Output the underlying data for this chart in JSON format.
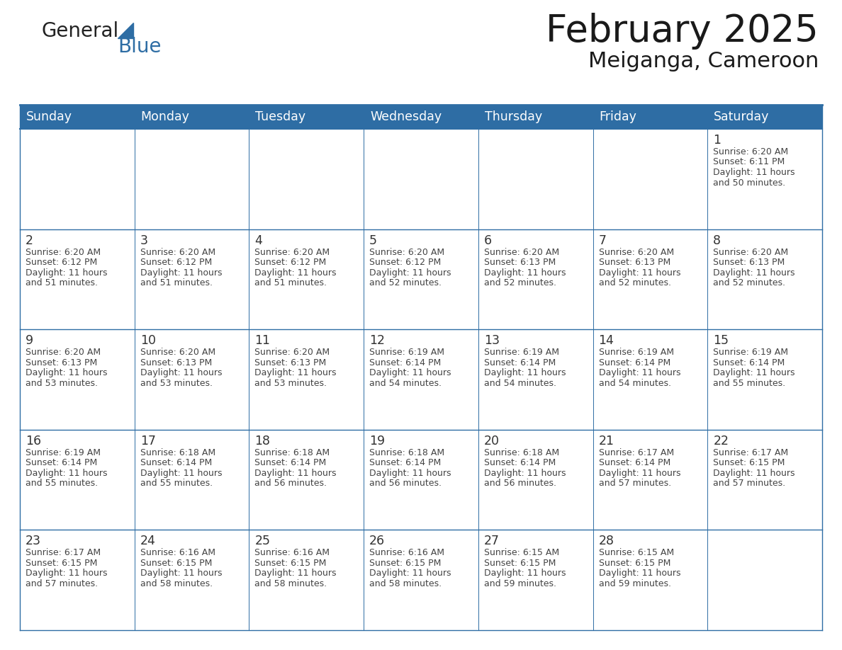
{
  "title": "February 2025",
  "subtitle": "Meiganga, Cameroon",
  "days_of_week": [
    "Sunday",
    "Monday",
    "Tuesday",
    "Wednesday",
    "Thursday",
    "Friday",
    "Saturday"
  ],
  "header_bg": "#2E6DA4",
  "header_text": "#FFFFFF",
  "cell_bg": "#FFFFFF",
  "border_color": "#2E6DA4",
  "text_color": "#333333",
  "title_color": "#1a1a1a",
  "calendar_data": [
    [
      null,
      null,
      null,
      null,
      null,
      null,
      {
        "day": 1,
        "sunrise": "6:20 AM",
        "sunset": "6:11 PM",
        "daylight": "11 hours and 50 minutes."
      }
    ],
    [
      {
        "day": 2,
        "sunrise": "6:20 AM",
        "sunset": "6:12 PM",
        "daylight": "11 hours and 51 minutes."
      },
      {
        "day": 3,
        "sunrise": "6:20 AM",
        "sunset": "6:12 PM",
        "daylight": "11 hours and 51 minutes."
      },
      {
        "day": 4,
        "sunrise": "6:20 AM",
        "sunset": "6:12 PM",
        "daylight": "11 hours and 51 minutes."
      },
      {
        "day": 5,
        "sunrise": "6:20 AM",
        "sunset": "6:12 PM",
        "daylight": "11 hours and 52 minutes."
      },
      {
        "day": 6,
        "sunrise": "6:20 AM",
        "sunset": "6:13 PM",
        "daylight": "11 hours and 52 minutes."
      },
      {
        "day": 7,
        "sunrise": "6:20 AM",
        "sunset": "6:13 PM",
        "daylight": "11 hours and 52 minutes."
      },
      {
        "day": 8,
        "sunrise": "6:20 AM",
        "sunset": "6:13 PM",
        "daylight": "11 hours and 52 minutes."
      }
    ],
    [
      {
        "day": 9,
        "sunrise": "6:20 AM",
        "sunset": "6:13 PM",
        "daylight": "11 hours and 53 minutes."
      },
      {
        "day": 10,
        "sunrise": "6:20 AM",
        "sunset": "6:13 PM",
        "daylight": "11 hours and 53 minutes."
      },
      {
        "day": 11,
        "sunrise": "6:20 AM",
        "sunset": "6:13 PM",
        "daylight": "11 hours and 53 minutes."
      },
      {
        "day": 12,
        "sunrise": "6:19 AM",
        "sunset": "6:14 PM",
        "daylight": "11 hours and 54 minutes."
      },
      {
        "day": 13,
        "sunrise": "6:19 AM",
        "sunset": "6:14 PM",
        "daylight": "11 hours and 54 minutes."
      },
      {
        "day": 14,
        "sunrise": "6:19 AM",
        "sunset": "6:14 PM",
        "daylight": "11 hours and 54 minutes."
      },
      {
        "day": 15,
        "sunrise": "6:19 AM",
        "sunset": "6:14 PM",
        "daylight": "11 hours and 55 minutes."
      }
    ],
    [
      {
        "day": 16,
        "sunrise": "6:19 AM",
        "sunset": "6:14 PM",
        "daylight": "11 hours and 55 minutes."
      },
      {
        "day": 17,
        "sunrise": "6:18 AM",
        "sunset": "6:14 PM",
        "daylight": "11 hours and 55 minutes."
      },
      {
        "day": 18,
        "sunrise": "6:18 AM",
        "sunset": "6:14 PM",
        "daylight": "11 hours and 56 minutes."
      },
      {
        "day": 19,
        "sunrise": "6:18 AM",
        "sunset": "6:14 PM",
        "daylight": "11 hours and 56 minutes."
      },
      {
        "day": 20,
        "sunrise": "6:18 AM",
        "sunset": "6:14 PM",
        "daylight": "11 hours and 56 minutes."
      },
      {
        "day": 21,
        "sunrise": "6:17 AM",
        "sunset": "6:14 PM",
        "daylight": "11 hours and 57 minutes."
      },
      {
        "day": 22,
        "sunrise": "6:17 AM",
        "sunset": "6:15 PM",
        "daylight": "11 hours and 57 minutes."
      }
    ],
    [
      {
        "day": 23,
        "sunrise": "6:17 AM",
        "sunset": "6:15 PM",
        "daylight": "11 hours and 57 minutes."
      },
      {
        "day": 24,
        "sunrise": "6:16 AM",
        "sunset": "6:15 PM",
        "daylight": "11 hours and 58 minutes."
      },
      {
        "day": 25,
        "sunrise": "6:16 AM",
        "sunset": "6:15 PM",
        "daylight": "11 hours and 58 minutes."
      },
      {
        "day": 26,
        "sunrise": "6:16 AM",
        "sunset": "6:15 PM",
        "daylight": "11 hours and 58 minutes."
      },
      {
        "day": 27,
        "sunrise": "6:15 AM",
        "sunset": "6:15 PM",
        "daylight": "11 hours and 59 minutes."
      },
      {
        "day": 28,
        "sunrise": "6:15 AM",
        "sunset": "6:15 PM",
        "daylight": "11 hours and 59 minutes."
      },
      null
    ]
  ],
  "num_rows": 5,
  "num_cols": 7,
  "fig_width": 11.88,
  "fig_height": 9.18,
  "dpi": 100
}
